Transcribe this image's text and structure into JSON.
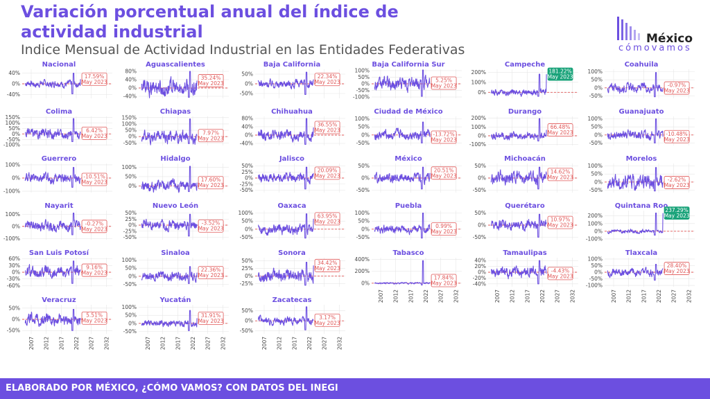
{
  "header": {
    "title": "Variación porcentual anual del índice de actividad industrial",
    "subtitle": "Indice Mensual de Actividad Industrial en las Entidades Federativas"
  },
  "logo": {
    "name": "México",
    "tagline": "cómovamos"
  },
  "footer": {
    "text": "ELABORADO POR MÉXICO, ¿CÓMO VAMOS? CON DATOS DEL INEGI"
  },
  "colors": {
    "line": "#6c4fe0",
    "title": "#6c4fe0",
    "negative": "#e05555",
    "positive": "#1aa37a",
    "footer": "#6c4fe0"
  },
  "chart_data": {
    "type": "line",
    "layout": "small-multiples",
    "x_ticks": [
      "2007",
      "2012",
      "2017",
      "2022",
      "2027",
      "2032"
    ],
    "xlim": [
      2004,
      2034
    ],
    "reference_line": 0,
    "label_date": "May 2023",
    "panels": [
      {
        "name": "Nacional",
        "last_value": 17.59,
        "label": "17.59%",
        "yticks": [
          "40%",
          "0%",
          "-40%"
        ],
        "ylim": [
          -55,
          55
        ],
        "amp": 9,
        "spike": 40,
        "dip": -38
      },
      {
        "name": "Aguascalientes",
        "last_value": 35.24,
        "label": "35.24%",
        "yticks": [
          "80%",
          "40%",
          "0%",
          "-40%"
        ],
        "ylim": [
          -50,
          90
        ],
        "amp": 28,
        "spike": 80,
        "dip": -45
      },
      {
        "name": "Baja California",
        "last_value": 22.34,
        "label": "22.34%",
        "yticks": [
          "50%",
          "0%",
          "-50%"
        ],
        "ylim": [
          -75,
          75
        ],
        "amp": 15,
        "spike": 60,
        "dip": -55
      },
      {
        "name": "Baja California Sur",
        "last_value": 5.25,
        "label": "5.25%",
        "yticks": [
          "100%",
          "50%",
          "0%",
          "-50%",
          "-100%"
        ],
        "ylim": [
          -110,
          110
        ],
        "amp": 35,
        "spike": 105,
        "dip": -95
      },
      {
        "name": "Campeche",
        "last_value": 181.22,
        "label": "181.22%",
        "yticks": [
          "200%",
          "100%",
          "0%"
        ],
        "ylim": [
          -60,
          230
        ],
        "amp": 22,
        "spike": 181,
        "dip": -40
      },
      {
        "name": "Coahuila",
        "last_value": -0.97,
        "label": "-0.97%",
        "yticks": [
          "100%",
          "50%",
          "0%",
          "-50%"
        ],
        "ylim": [
          -65,
          115
        ],
        "amp": 18,
        "spike": 95,
        "dip": -55
      },
      {
        "name": "Colima",
        "last_value": 6.42,
        "label": "6.42%",
        "yticks": [
          "150%",
          "100%",
          "50%",
          "0%",
          "-50%",
          "-100%"
        ],
        "ylim": [
          -105,
          160
        ],
        "amp": 30,
        "spike": 140,
        "dip": -70
      },
      {
        "name": "Chiapas",
        "last_value": 7.97,
        "label": "7.97%",
        "yticks": [
          "150%",
          "100%",
          "50%",
          "0%",
          "-50%"
        ],
        "ylim": [
          -70,
          160
        ],
        "amp": 35,
        "spike": 140,
        "dip": -55
      },
      {
        "name": "Chihuahua",
        "last_value": 36.55,
        "label": "36.55%",
        "yticks": [
          "80%",
          "40%",
          "0%",
          "-40%"
        ],
        "ylim": [
          -50,
          90
        ],
        "amp": 18,
        "spike": 80,
        "dip": -45
      },
      {
        "name": "Ciudad de México",
        "last_value": -13.72,
        "label": "-13.72%",
        "yticks": [
          "100%",
          "50%",
          "0%",
          "-50%"
        ],
        "ylim": [
          -65,
          115
        ],
        "amp": 22,
        "spike": 80,
        "dip": -50
      },
      {
        "name": "Durango",
        "last_value": 66.48,
        "label": "66.48%",
        "yticks": [
          "200%",
          "100%",
          "0%",
          "-100%"
        ],
        "ylim": [
          -110,
          220
        ],
        "amp": 30,
        "spike": 195,
        "dip": -60
      },
      {
        "name": "Guanajuato",
        "last_value": -10.48,
        "label": "-10.48%",
        "yticks": [
          "100%",
          "50%",
          "0%",
          "-50%"
        ],
        "ylim": [
          -65,
          115
        ],
        "amp": 18,
        "spike": 100,
        "dip": -50
      },
      {
        "name": "Guerrero",
        "last_value": -10.51,
        "label": "-10.51%",
        "yticks": [
          "100%",
          "0%",
          "-100%"
        ],
        "ylim": [
          -110,
          110
        ],
        "amp": 25,
        "spike": 80,
        "dip": -70
      },
      {
        "name": "Hidalgo",
        "last_value": 17.6,
        "label": "17.60%",
        "yticks": [
          "100%",
          "50%",
          "0%"
        ],
        "ylim": [
          -35,
          120
        ],
        "amp": 20,
        "spike": 105,
        "dip": -30
      },
      {
        "name": "Jalisco",
        "last_value": 20.09,
        "label": "20.09%",
        "yticks": [
          "50%",
          "25%",
          "0%",
          "-25%",
          "-50%"
        ],
        "ylim": [
          -60,
          60
        ],
        "amp": 14,
        "spike": 45,
        "dip": -45
      },
      {
        "name": "México",
        "last_value": 20.51,
        "label": "20.51%",
        "yticks": [
          "50%",
          "0%",
          "-50%"
        ],
        "ylim": [
          -60,
          60
        ],
        "amp": 14,
        "spike": 45,
        "dip": -45
      },
      {
        "name": "Michoacán",
        "last_value": 14.62,
        "label": "14.62%",
        "yticks": [
          "50%",
          "0%",
          "-50%"
        ],
        "ylim": [
          -60,
          60
        ],
        "amp": 18,
        "spike": 45,
        "dip": -45
      },
      {
        "name": "Morelos",
        "last_value": -2.62,
        "label": "-2.62%",
        "yticks": [
          "100%",
          "50%",
          "0%",
          "-50%"
        ],
        "ylim": [
          -65,
          115
        ],
        "amp": 30,
        "spike": 90,
        "dip": -55
      },
      {
        "name": "Nayarit",
        "last_value": -0.27,
        "label": "-0.27%",
        "yticks": [
          "100%",
          "0%",
          "-100%"
        ],
        "ylim": [
          -110,
          130
        ],
        "amp": 30,
        "spike": 110,
        "dip": -70
      },
      {
        "name": "Nuevo León",
        "last_value": -3.52,
        "label": "-3.52%",
        "yticks": [
          "50%",
          "25%",
          "0%",
          "-25%",
          "-50%"
        ],
        "ylim": [
          -60,
          60
        ],
        "amp": 14,
        "spike": 45,
        "dip": -45
      },
      {
        "name": "Oaxaca",
        "last_value": 63.95,
        "label": "63.95%",
        "yticks": [
          "100%",
          "50%",
          "0%",
          "-50%"
        ],
        "ylim": [
          -65,
          115
        ],
        "amp": 22,
        "spike": 95,
        "dip": -55
      },
      {
        "name": "Puebla",
        "last_value": 0.99,
        "label": "0.99%",
        "yticks": [
          "100%",
          "50%",
          "0%",
          "-50%"
        ],
        "ylim": [
          -65,
          115
        ],
        "amp": 18,
        "spike": 100,
        "dip": -55
      },
      {
        "name": "Querétaro",
        "last_value": 10.97,
        "label": "10.97%",
        "yticks": [
          "50%",
          "0%",
          "-50%"
        ],
        "ylim": [
          -60,
          60
        ],
        "amp": 14,
        "spike": 45,
        "dip": -50
      },
      {
        "name": "Quintana Roo",
        "last_value": 237.29,
        "label": "237.29%",
        "yticks": [
          "200%",
          "100%",
          "0%",
          "-100%"
        ],
        "ylim": [
          -110,
          270
        ],
        "amp": 18,
        "spike": 237,
        "dip": -50
      },
      {
        "name": "San Luis Potosí",
        "last_value": 9.16,
        "label": "9.16%",
        "yticks": [
          "60%",
          "30%",
          "0%",
          "-30%",
          "-60%"
        ],
        "ylim": [
          -65,
          65
        ],
        "amp": 18,
        "spike": 50,
        "dip": -50
      },
      {
        "name": "Sinaloa",
        "last_value": 22.36,
        "label": "22.36%",
        "yticks": [
          "100%",
          "50%",
          "0%",
          "-50%"
        ],
        "ylim": [
          -65,
          115
        ],
        "amp": 20,
        "spike": 60,
        "dip": -45
      },
      {
        "name": "Sonora",
        "last_value": 34.42,
        "label": "34.42%",
        "yticks": [
          "50%",
          "25%",
          "0%",
          "-25%"
        ],
        "ylim": [
          -35,
          60
        ],
        "amp": 14,
        "spike": 45,
        "dip": -30
      },
      {
        "name": "Tabasco",
        "last_value": 17.84,
        "label": "17.84%",
        "yticks": [
          "400%",
          "200%",
          "0%"
        ],
        "ylim": [
          -60,
          430
        ],
        "amp": 10,
        "spike": 380,
        "dip": -30
      },
      {
        "name": "Tamaulipas",
        "last_value": -4.43,
        "label": "-4.43%",
        "yticks": [
          "40%",
          "20%",
          "0%",
          "-20%",
          "-40%"
        ],
        "ylim": [
          -50,
          50
        ],
        "amp": 14,
        "spike": 40,
        "dip": -40
      },
      {
        "name": "Tlaxcala",
        "last_value": 28.4,
        "label": "28.40%",
        "yticks": [
          "100%",
          "50%",
          "0%",
          "-50%",
          "-100%"
        ],
        "ylim": [
          -110,
          110
        ],
        "amp": 20,
        "spike": 60,
        "dip": -60
      },
      {
        "name": "Veracruz",
        "last_value": 5.51,
        "label": "5.51%",
        "yticks": [
          "50%",
          "0%",
          "-50%"
        ],
        "ylim": [
          -65,
          65
        ],
        "amp": 18,
        "spike": 45,
        "dip": -50
      },
      {
        "name": "Yucatán",
        "last_value": 31.91,
        "label": "31.91%",
        "yticks": [
          "100%",
          "50%",
          "0%",
          "-50%"
        ],
        "ylim": [
          -65,
          115
        ],
        "amp": 14,
        "spike": 80,
        "dip": -45
      },
      {
        "name": "Zacatecas",
        "last_value": 3.17,
        "label": "3.17%",
        "yticks": [
          "50%",
          "0%",
          "-50%"
        ],
        "ylim": [
          -65,
          80
        ],
        "amp": 14,
        "spike": 70,
        "dip": -45
      }
    ]
  }
}
